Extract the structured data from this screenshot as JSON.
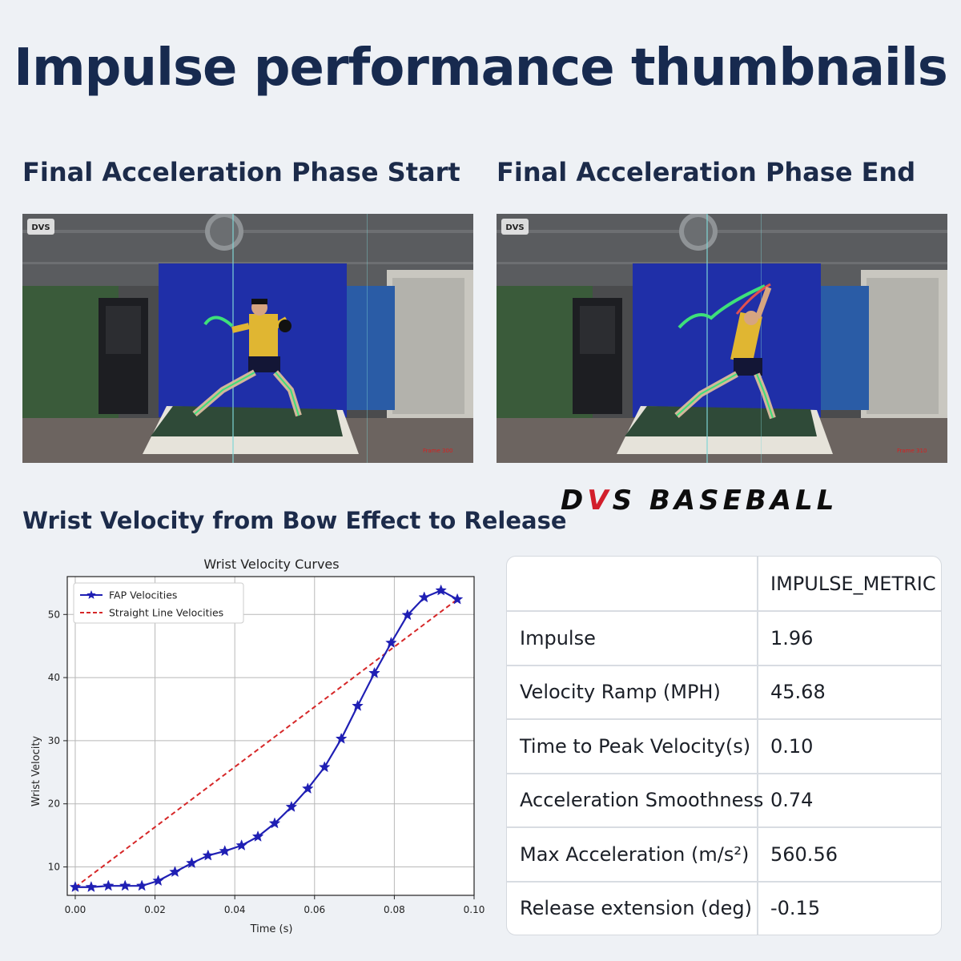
{
  "page": {
    "title": "Impulse performance thumbnails"
  },
  "thumbnails": {
    "start": {
      "heading": "Final Acceleration Phase Start",
      "frame_label": "Frame 300",
      "watermark": "DVS"
    },
    "end": {
      "heading": "Final Acceleration Phase End",
      "frame_label": "Frame 310",
      "watermark": "DVS"
    }
  },
  "chart_section": {
    "heading": "Wrist Velocity from Bow Effect to Release"
  },
  "brand": {
    "logo_part1": "D",
    "logo_accent": "V",
    "logo_part2": "S BASEBALL",
    "accent_color": "#d21e2b"
  },
  "chart_data": {
    "type": "line",
    "title": "Wrist Velocity Curves",
    "xlabel": "Time (s)",
    "ylabel": "Wrist Velocity",
    "xlim": [
      -0.002,
      0.1
    ],
    "ylim": [
      5.5,
      56
    ],
    "xticks": [
      0.0,
      0.02,
      0.04,
      0.06,
      0.08,
      0.1
    ],
    "xtick_labels": [
      "0.00",
      "0.02",
      "0.04",
      "0.06",
      "0.08",
      "0.10"
    ],
    "yticks": [
      10,
      20,
      30,
      40,
      50
    ],
    "yticks_labels": [
      "10",
      "20",
      "30",
      "40",
      "50"
    ],
    "grid": true,
    "legend_position": "top-left",
    "series": [
      {
        "name": "FAP Velocities",
        "color": "#1f1fb4",
        "style": "solid",
        "marker": "star",
        "x": [
          0.0,
          0.004,
          0.0083,
          0.0125,
          0.0167,
          0.0208,
          0.025,
          0.0292,
          0.0333,
          0.0375,
          0.0417,
          0.0458,
          0.05,
          0.0542,
          0.0583,
          0.0625,
          0.0667,
          0.0708,
          0.075,
          0.0792,
          0.0833,
          0.0875,
          0.0917,
          0.0958
        ],
        "y": [
          6.8,
          6.8,
          7.0,
          7.0,
          7.0,
          7.8,
          9.2,
          10.6,
          11.8,
          12.5,
          13.4,
          14.8,
          16.9,
          19.5,
          22.4,
          25.8,
          30.3,
          35.5,
          40.7,
          45.5,
          49.9,
          52.7,
          53.8,
          52.4
        ]
      },
      {
        "name": "Straight Line Velocities",
        "color": "#d62728",
        "style": "dashed",
        "x": [
          0.0,
          0.0958
        ],
        "y": [
          6.8,
          52.4
        ]
      }
    ]
  },
  "metrics": {
    "header": {
      "col1": "",
      "col2": "IMPULSE_METRIC"
    },
    "rows": [
      {
        "label": "Impulse",
        "value": "1.96"
      },
      {
        "label": "Velocity Ramp (MPH)",
        "value": "45.68"
      },
      {
        "label": "Time to Peak Velocity(s)",
        "value": "0.10"
      },
      {
        "label": "Acceleration Smoothness",
        "value": "0.74"
      },
      {
        "label": "Max Acceleration (m/s²)",
        "value": "560.56"
      },
      {
        "label": "Release extension (deg)",
        "value": "-0.15"
      }
    ]
  }
}
